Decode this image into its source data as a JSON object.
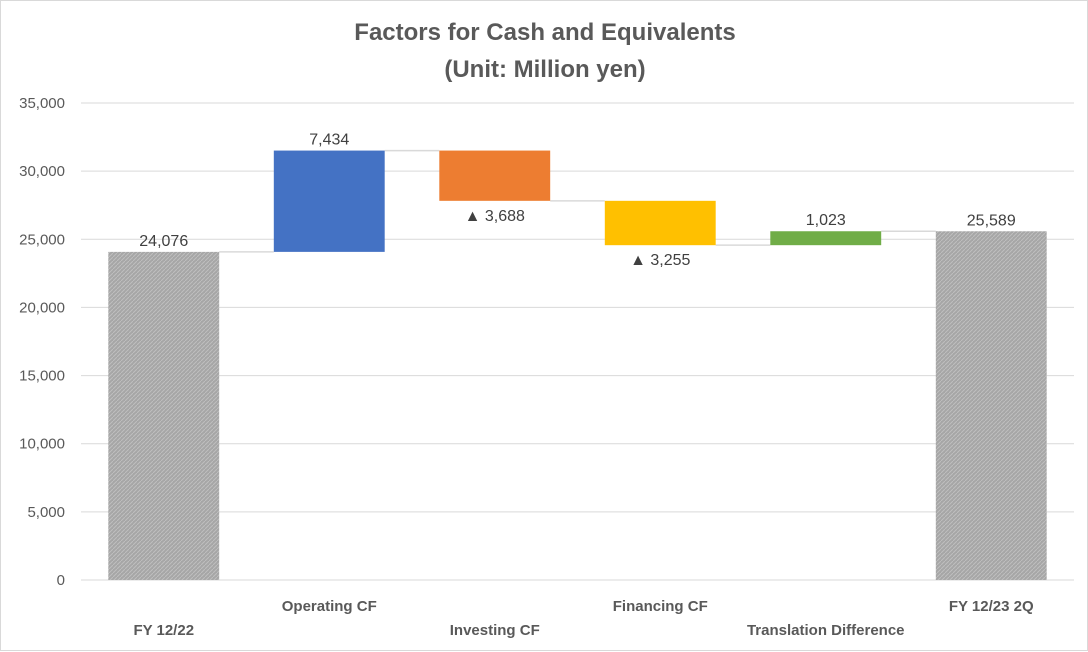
{
  "chart_data": {
    "type": "bar",
    "subtype": "waterfall",
    "title": "Factors for Cash and Equivalents",
    "subtitle": "(Unit: Million yen)",
    "ylim": [
      0,
      35000
    ],
    "yticks": [
      0,
      5000,
      10000,
      15000,
      20000,
      25000,
      30000,
      35000
    ],
    "ytick_labels": [
      "0",
      "5,000",
      "10,000",
      "15,000",
      "20,000",
      "25,000",
      "30,000",
      "35,000"
    ],
    "grid": true,
    "legend": "none",
    "categories": [
      "FY 12/22",
      "Operating CF",
      "Investing CF",
      "Financing CF",
      "Translation Difference",
      "FY 12/23 2Q"
    ],
    "values": [
      24076,
      7434,
      -3688,
      -3255,
      1023,
      25589
    ],
    "bar_kinds": [
      "total",
      "delta",
      "delta",
      "delta",
      "delta",
      "total"
    ],
    "colors": [
      "#a6a6a6",
      "#4472c4",
      "#ed7d31",
      "#ffc000",
      "#70ad47",
      "#a6a6a6"
    ],
    "data_labels": [
      "24,076",
      "7,434",
      "▲ 3,688",
      "▲ 3,255",
      "1,023",
      "25,589"
    ],
    "connector_color": "#d9d9d9",
    "gridline_color": "#d9d9d9"
  }
}
